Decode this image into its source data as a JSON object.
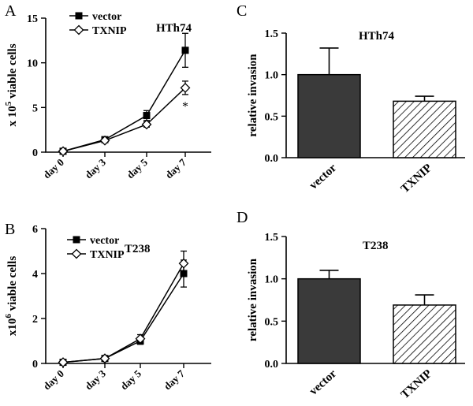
{
  "colors": {
    "vector_bar": "#3a3a3a",
    "axis": "#000000",
    "hatch": "#000000"
  },
  "chart_data": [
    {
      "panel": "A",
      "type": "line",
      "title": "HTh74",
      "ylabel_prefix": "x 10",
      "ylabel_exp": "5",
      "ylabel_suffix": " viable cells",
      "categories": [
        "day 0",
        "day 3",
        "day 5",
        "day 7"
      ],
      "ylim": [
        0,
        15
      ],
      "yticks": [
        0,
        5,
        10,
        15
      ],
      "series": [
        {
          "name": "vector",
          "marker": "square",
          "values": [
            0.1,
            1.4,
            4.1,
            11.4
          ],
          "errors": [
            0.15,
            0.25,
            0.55,
            1.9
          ]
        },
        {
          "name": "TXNIP",
          "marker": "diamond",
          "values": [
            0.1,
            1.3,
            3.1,
            7.2
          ],
          "errors": [
            0.15,
            0.2,
            0.3,
            0.75
          ]
        }
      ],
      "annotations": [
        "*"
      ]
    },
    {
      "panel": "B",
      "type": "line",
      "title": "T238",
      "ylabel_prefix": "x10",
      "ylabel_exp": "6",
      "ylabel_suffix": " viable cells",
      "categories": [
        "day 0",
        "day 3",
        "day 5",
        "day 7"
      ],
      "ylim": [
        0,
        6
      ],
      "yticks": [
        0,
        2,
        4,
        6
      ],
      "series": [
        {
          "name": "vector",
          "marker": "square",
          "values": [
            0.05,
            0.22,
            1.0,
            4.0
          ],
          "errors": [
            0.04,
            0.05,
            0.15,
            0.6
          ]
        },
        {
          "name": "TXNIP",
          "marker": "diamond",
          "values": [
            0.05,
            0.22,
            1.1,
            4.45
          ],
          "errors": [
            0.04,
            0.05,
            0.18,
            0.55
          ]
        }
      ]
    },
    {
      "panel": "C",
      "type": "bar",
      "title": "HTh74",
      "ylabel": "relative invasion",
      "categories": [
        "vector",
        "TXNIP"
      ],
      "values": [
        1.0,
        0.68
      ],
      "errors": [
        0.32,
        0.06
      ],
      "ylim": [
        0,
        1.5
      ],
      "yticks": [
        "0.0",
        "0.5",
        "1.0",
        "1.5"
      ]
    },
    {
      "panel": "D",
      "type": "bar",
      "title": "T238",
      "ylabel": "relative invasion",
      "categories": [
        "vector",
        "TXNIP"
      ],
      "values": [
        1.0,
        0.69
      ],
      "errors": [
        0.1,
        0.12
      ],
      "ylim": [
        0,
        1.5
      ],
      "yticks": [
        "0.0",
        "0.5",
        "1.0",
        "1.5"
      ]
    }
  ]
}
